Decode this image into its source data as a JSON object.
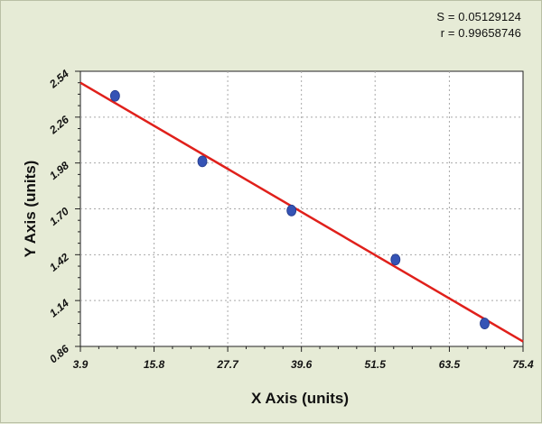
{
  "stats": {
    "s_line": "S = 0.05129124",
    "r_line": "r = 0.99658746"
  },
  "colors": {
    "background": "#e6ebd6",
    "plot_background": "#ffffff",
    "fit_line": "#e0201b",
    "points": "#3553b5",
    "grid": "#a9a9a9"
  },
  "chart_data": {
    "type": "scatter",
    "title": "",
    "xlabel": "X Axis (units)",
    "ylabel": "Y Axis (units)",
    "xlim": [
      3.9,
      75.4
    ],
    "ylim": [
      0.86,
      2.54
    ],
    "x_ticks": [
      "3.9",
      "15.8",
      "27.7",
      "39.6",
      "51.5",
      "63.5",
      "75.4"
    ],
    "y_ticks": [
      "0.86",
      "1.14",
      "1.42",
      "1.70",
      "1.98",
      "2.26",
      "2.54"
    ],
    "grid": true,
    "series": [
      {
        "x": [
          9.5,
          23.6,
          38.0,
          54.8,
          69.2
        ],
        "y": [
          2.39,
          1.99,
          1.69,
          1.39,
          1.0
        ]
      }
    ],
    "fit_line": {
      "x": [
        3.9,
        75.4
      ],
      "y": [
        2.47,
        0.89
      ]
    }
  }
}
